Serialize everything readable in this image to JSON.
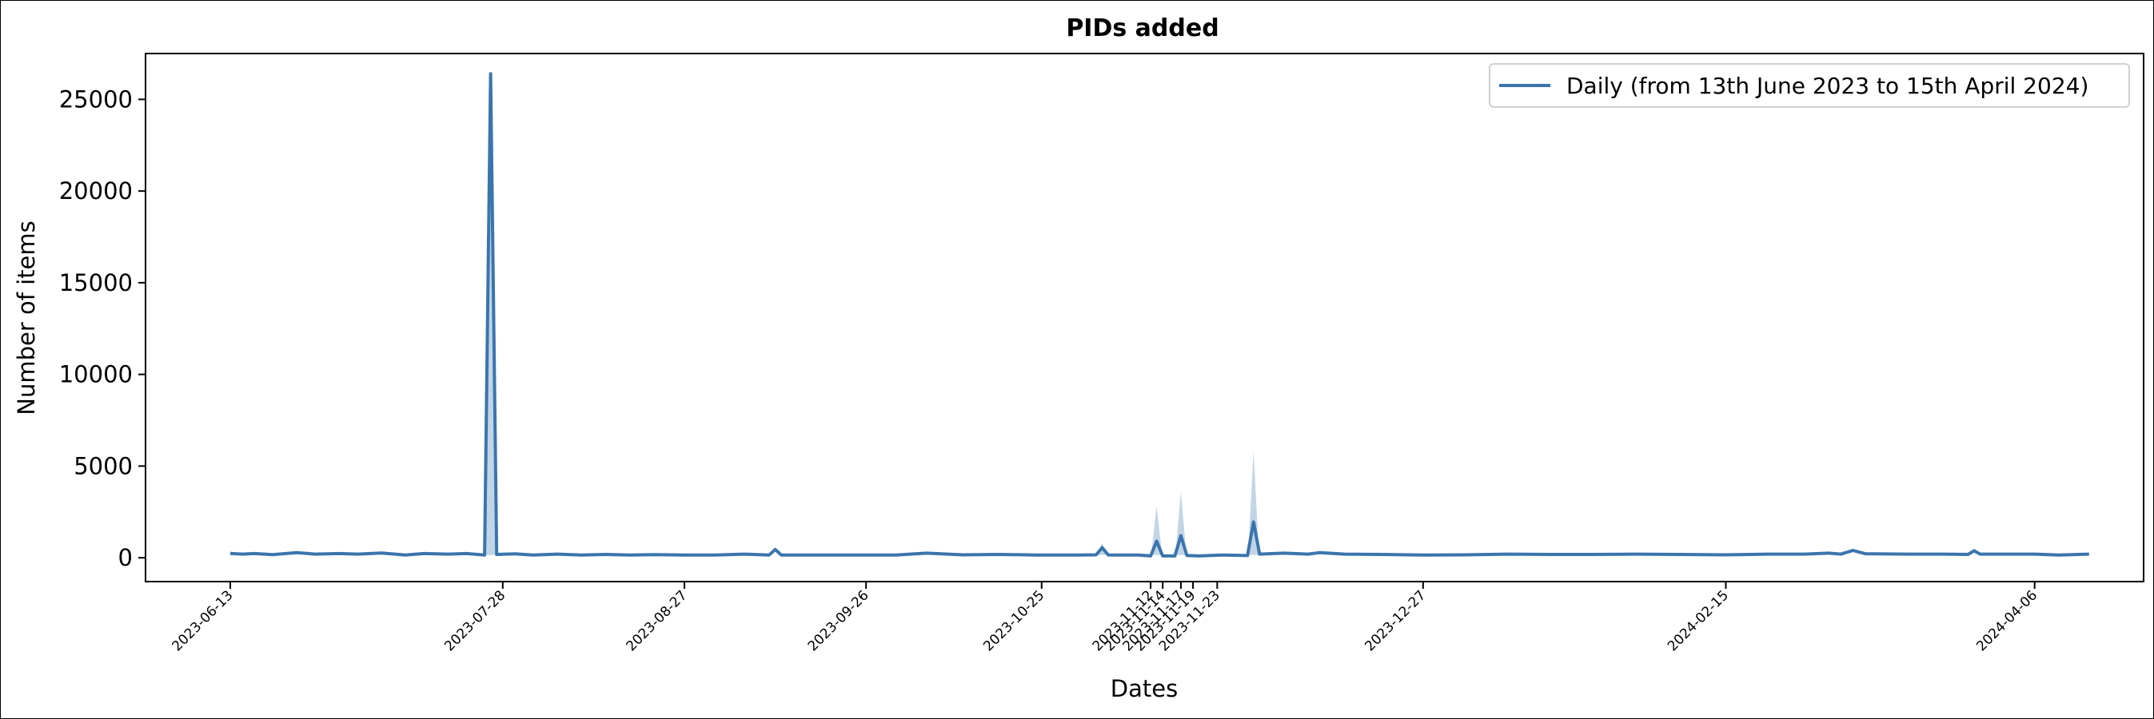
{
  "chart_data": {
    "type": "line",
    "title": "PIDs added",
    "xlabel": "Dates",
    "ylabel": "Number of items",
    "x_axis": "dates",
    "xlim": [
      "2023-05-30",
      "2024-04-24"
    ],
    "ylim": [
      -1300,
      27500
    ],
    "x_ticks": [
      "2023-06-13",
      "2023-07-28",
      "2023-08-27",
      "2023-09-26",
      "2023-10-25",
      "2023-11-12",
      "2023-11-14",
      "2023-11-17",
      "2023-11-19",
      "2023-11-23",
      "2023-12-27",
      "2024-02-15",
      "2024-04-06"
    ],
    "y_ticks": [
      0,
      5000,
      10000,
      15000,
      20000,
      25000
    ],
    "grid": false,
    "legend_position": "top-right",
    "line_color": "#3a75ad",
    "band_color": "#a8c3dc",
    "series": [
      {
        "name": "Daily (from 13th June 2023 to 15th April 2024)",
        "points": [
          [
            "2023-06-13",
            240
          ],
          [
            "2023-06-15",
            200
          ],
          [
            "2023-06-17",
            230
          ],
          [
            "2023-06-20",
            170
          ],
          [
            "2023-06-24",
            280
          ],
          [
            "2023-06-27",
            200
          ],
          [
            "2023-07-01",
            230
          ],
          [
            "2023-07-04",
            200
          ],
          [
            "2023-07-08",
            260
          ],
          [
            "2023-07-12",
            150
          ],
          [
            "2023-07-15",
            230
          ],
          [
            "2023-07-19",
            200
          ],
          [
            "2023-07-22",
            230
          ],
          [
            "2023-07-25",
            150
          ],
          [
            "2023-07-26",
            26400
          ],
          [
            "2023-07-27",
            180
          ],
          [
            "2023-07-30",
            210
          ],
          [
            "2023-08-02",
            150
          ],
          [
            "2023-08-06",
            200
          ],
          [
            "2023-08-10",
            150
          ],
          [
            "2023-08-14",
            180
          ],
          [
            "2023-08-18",
            150
          ],
          [
            "2023-08-22",
            170
          ],
          [
            "2023-08-27",
            150
          ],
          [
            "2023-09-01",
            150
          ],
          [
            "2023-09-06",
            200
          ],
          [
            "2023-09-10",
            150
          ],
          [
            "2023-09-11",
            450
          ],
          [
            "2023-09-12",
            150
          ],
          [
            "2023-09-18",
            150
          ],
          [
            "2023-09-24",
            150
          ],
          [
            "2023-10-01",
            150
          ],
          [
            "2023-10-06",
            250
          ],
          [
            "2023-10-12",
            160
          ],
          [
            "2023-10-18",
            180
          ],
          [
            "2023-10-24",
            150
          ],
          [
            "2023-10-31",
            150
          ],
          [
            "2023-11-03",
            160
          ],
          [
            "2023-11-04",
            550
          ],
          [
            "2023-11-05",
            150
          ],
          [
            "2023-11-10",
            150
          ],
          [
            "2023-11-12",
            100
          ],
          [
            "2023-11-13",
            900
          ],
          [
            "2023-11-14",
            100
          ],
          [
            "2023-11-16",
            100
          ],
          [
            "2023-11-17",
            1200
          ],
          [
            "2023-11-18",
            120
          ],
          [
            "2023-11-20",
            100
          ],
          [
            "2023-11-24",
            150
          ],
          [
            "2023-11-28",
            120
          ],
          [
            "2023-11-29",
            1950
          ],
          [
            "2023-11-30",
            200
          ],
          [
            "2023-12-04",
            250
          ],
          [
            "2023-12-08",
            200
          ],
          [
            "2023-12-10",
            280
          ],
          [
            "2023-12-14",
            200
          ],
          [
            "2023-12-20",
            180
          ],
          [
            "2023-12-27",
            150
          ],
          [
            "2024-01-03",
            160
          ],
          [
            "2024-01-10",
            200
          ],
          [
            "2024-01-17",
            180
          ],
          [
            "2024-01-24",
            180
          ],
          [
            "2024-01-31",
            200
          ],
          [
            "2024-02-07",
            180
          ],
          [
            "2024-02-15",
            160
          ],
          [
            "2024-02-22",
            200
          ],
          [
            "2024-02-28",
            200
          ],
          [
            "2024-03-03",
            250
          ],
          [
            "2024-03-05",
            200
          ],
          [
            "2024-03-07",
            400
          ],
          [
            "2024-03-09",
            220
          ],
          [
            "2024-03-16",
            200
          ],
          [
            "2024-03-22",
            200
          ],
          [
            "2024-03-26",
            180
          ],
          [
            "2024-03-27",
            380
          ],
          [
            "2024-03-28",
            200
          ],
          [
            "2024-04-06",
            200
          ],
          [
            "2024-04-10",
            150
          ],
          [
            "2024-04-15",
            200
          ]
        ],
        "band_peaks": [
          [
            "2023-07-26",
            26400
          ],
          [
            "2023-11-04",
            800
          ],
          [
            "2023-11-13",
            2800
          ],
          [
            "2023-11-17",
            3600
          ],
          [
            "2023-11-29",
            5800
          ]
        ]
      }
    ]
  }
}
